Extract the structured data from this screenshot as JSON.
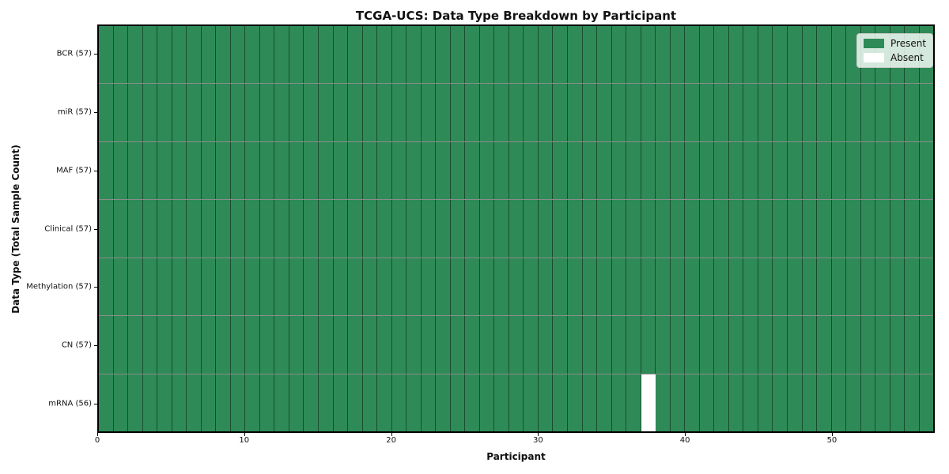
{
  "chart_data": {
    "type": "heatmap",
    "title": "TCGA-UCS: Data Type Breakdown by Participant",
    "xlabel": "Participant",
    "ylabel": "Data Type (Total Sample Count)",
    "n_participants": 57,
    "x_ticks": [
      0,
      10,
      20,
      30,
      40,
      50
    ],
    "x_range": [
      0,
      57
    ],
    "rows": [
      {
        "label": "BCR (57)",
        "total": 57,
        "absent_participants": []
      },
      {
        "label": "miR (57)",
        "total": 57,
        "absent_participants": []
      },
      {
        "label": "MAF (57)",
        "total": 57,
        "absent_participants": []
      },
      {
        "label": "Clinical (57)",
        "total": 57,
        "absent_participants": []
      },
      {
        "label": "Methylation (57)",
        "total": 57,
        "absent_participants": []
      },
      {
        "label": "CN (57)",
        "total": 57,
        "absent_participants": []
      },
      {
        "label": "mRNA (56)",
        "total": 56,
        "absent_participants": [
          37
        ]
      }
    ],
    "legend": [
      {
        "label": "Present",
        "color": "#2e8b57"
      },
      {
        "label": "Absent",
        "color": "#ffffff"
      }
    ],
    "legend_position": "upper-right",
    "grid": true,
    "colors": {
      "present": "#2e8b57",
      "absent": "#ffffff",
      "grid_line": "rgba(0,0,0,0.45)",
      "axis_border": "#000000"
    }
  }
}
